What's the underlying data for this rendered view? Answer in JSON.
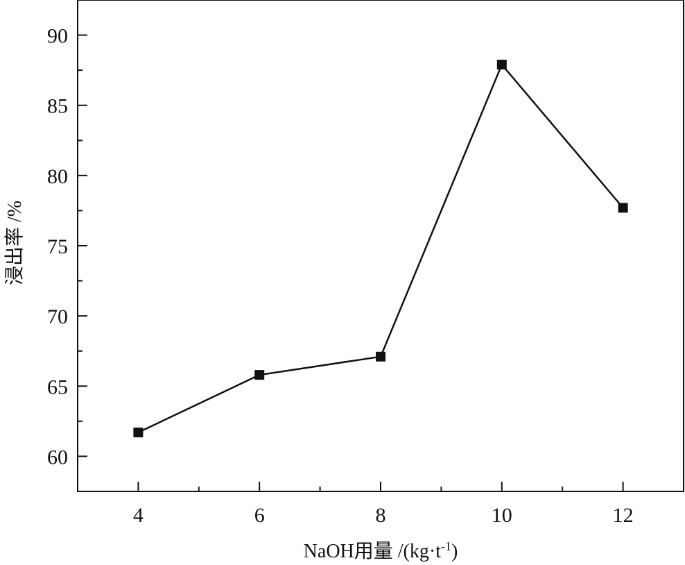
{
  "chart_data": {
    "type": "line",
    "x": [
      4,
      6,
      8,
      10,
      12
    ],
    "y": [
      61.7,
      65.8,
      67.1,
      87.9,
      77.7
    ],
    "xlabel": "NaOH用量 /(kg·t",
    "xlabel_sup": "-1",
    "xlabel_close": ")",
    "ylabel": "浸出率 /%",
    "xlim": [
      3,
      13
    ],
    "ylim": [
      57.5,
      92.5
    ],
    "xticks": [
      4,
      6,
      8,
      10,
      12
    ],
    "yticks": [
      60,
      65,
      70,
      75,
      80,
      85,
      90
    ],
    "xtick_labels": [
      "4",
      "6",
      "8",
      "10",
      "12"
    ],
    "ytick_labels": [
      "60",
      "65",
      "70",
      "75",
      "80",
      "85",
      "90"
    ],
    "marker": "square",
    "grid": false,
    "line_color": "#111111",
    "marker_color": "#111111"
  }
}
